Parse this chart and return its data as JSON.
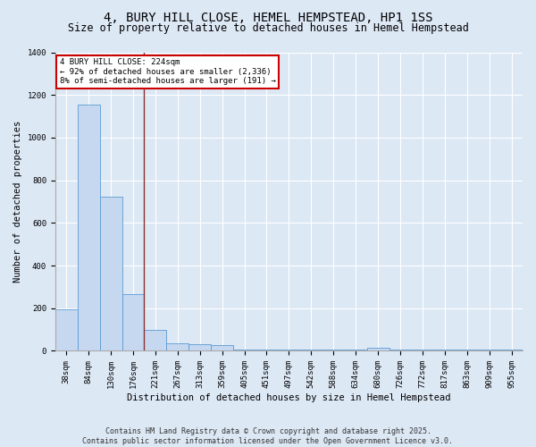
{
  "title": "4, BURY HILL CLOSE, HEMEL HEMPSTEAD, HP1 1SS",
  "subtitle": "Size of property relative to detached houses in Hemel Hempstead",
  "xlabel": "Distribution of detached houses by size in Hemel Hempstead",
  "ylabel": "Number of detached properties",
  "categories": [
    "38sqm",
    "84sqm",
    "130sqm",
    "176sqm",
    "221sqm",
    "267sqm",
    "313sqm",
    "359sqm",
    "405sqm",
    "451sqm",
    "497sqm",
    "542sqm",
    "588sqm",
    "634sqm",
    "680sqm",
    "726sqm",
    "772sqm",
    "817sqm",
    "863sqm",
    "909sqm",
    "955sqm"
  ],
  "values": [
    195,
    1155,
    725,
    265,
    100,
    35,
    30,
    28,
    8,
    8,
    8,
    8,
    8,
    8,
    15,
    8,
    8,
    8,
    8,
    8,
    8
  ],
  "bar_color": "#c5d8f0",
  "bar_edge_color": "#5b9bd5",
  "vline_x": 3.5,
  "vline_color": "#8b3030",
  "annotation_text": "4 BURY HILL CLOSE: 224sqm\n← 92% of detached houses are smaller (2,336)\n8% of semi-detached houses are larger (191) →",
  "annotation_box_color": "#ffffff",
  "annotation_box_edge": "#cc0000",
  "ylim": [
    0,
    1400
  ],
  "yticks": [
    0,
    200,
    400,
    600,
    800,
    1000,
    1200,
    1400
  ],
  "footer": "Contains HM Land Registry data © Crown copyright and database right 2025.\nContains public sector information licensed under the Open Government Licence v3.0.",
  "bg_color": "#dde8f5",
  "plot_bg_color": "#dde8f5",
  "title_fontsize": 10,
  "subtitle_fontsize": 8.5,
  "axis_label_fontsize": 7.5,
  "tick_fontsize": 6.5,
  "footer_fontsize": 6,
  "annot_fontsize": 6.5
}
